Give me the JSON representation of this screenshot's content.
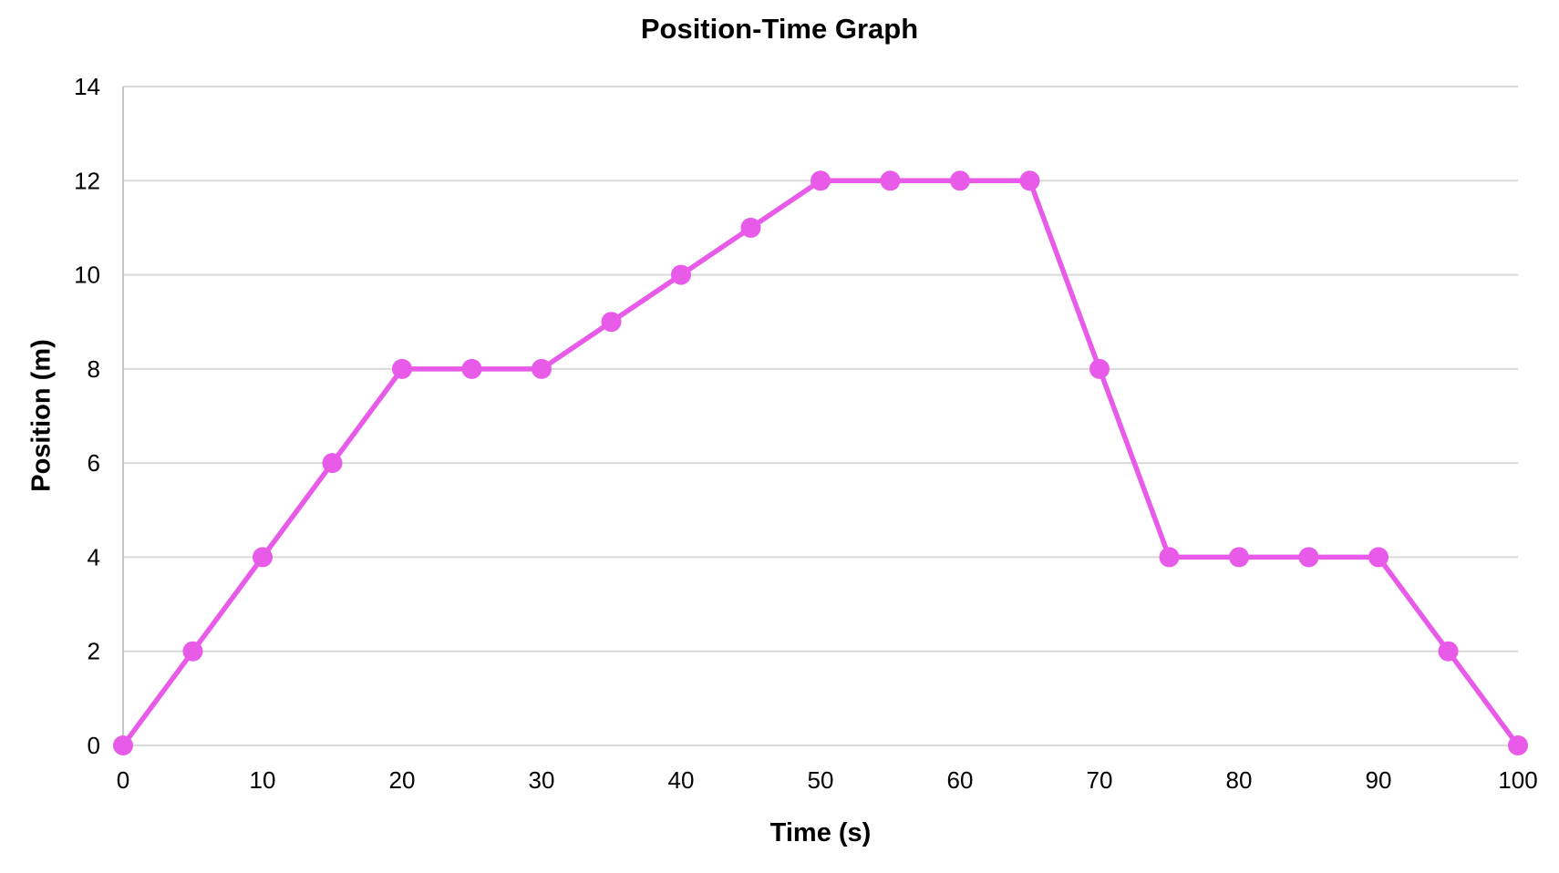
{
  "chart_data": {
    "type": "line",
    "title": "Position-Time Graph",
    "xlabel": "Time (s)",
    "ylabel": "Position (m)",
    "x": [
      0,
      5,
      10,
      15,
      20,
      25,
      30,
      35,
      40,
      45,
      50,
      55,
      60,
      65,
      70,
      75,
      80,
      85,
      90,
      95,
      100
    ],
    "y": [
      0,
      2,
      4,
      6,
      8,
      8,
      8,
      9,
      10,
      11,
      12,
      12,
      12,
      12,
      8,
      4,
      4,
      4,
      4,
      2,
      0
    ],
    "xlim": [
      0,
      100
    ],
    "ylim": [
      0,
      14
    ],
    "xticks": [
      0,
      10,
      20,
      30,
      40,
      50,
      60,
      70,
      80,
      90,
      100
    ],
    "yticks": [
      0,
      2,
      4,
      6,
      8,
      10,
      12,
      14
    ],
    "grid": "horizontal-only",
    "legend": "none",
    "marker": "circle",
    "series_name": "Position",
    "colors": {
      "series": "#E85BE8",
      "gridline": "#D9D9D9",
      "axis_line": "#C6C6C6",
      "text": "#000000",
      "background": "#FFFFFF"
    }
  }
}
